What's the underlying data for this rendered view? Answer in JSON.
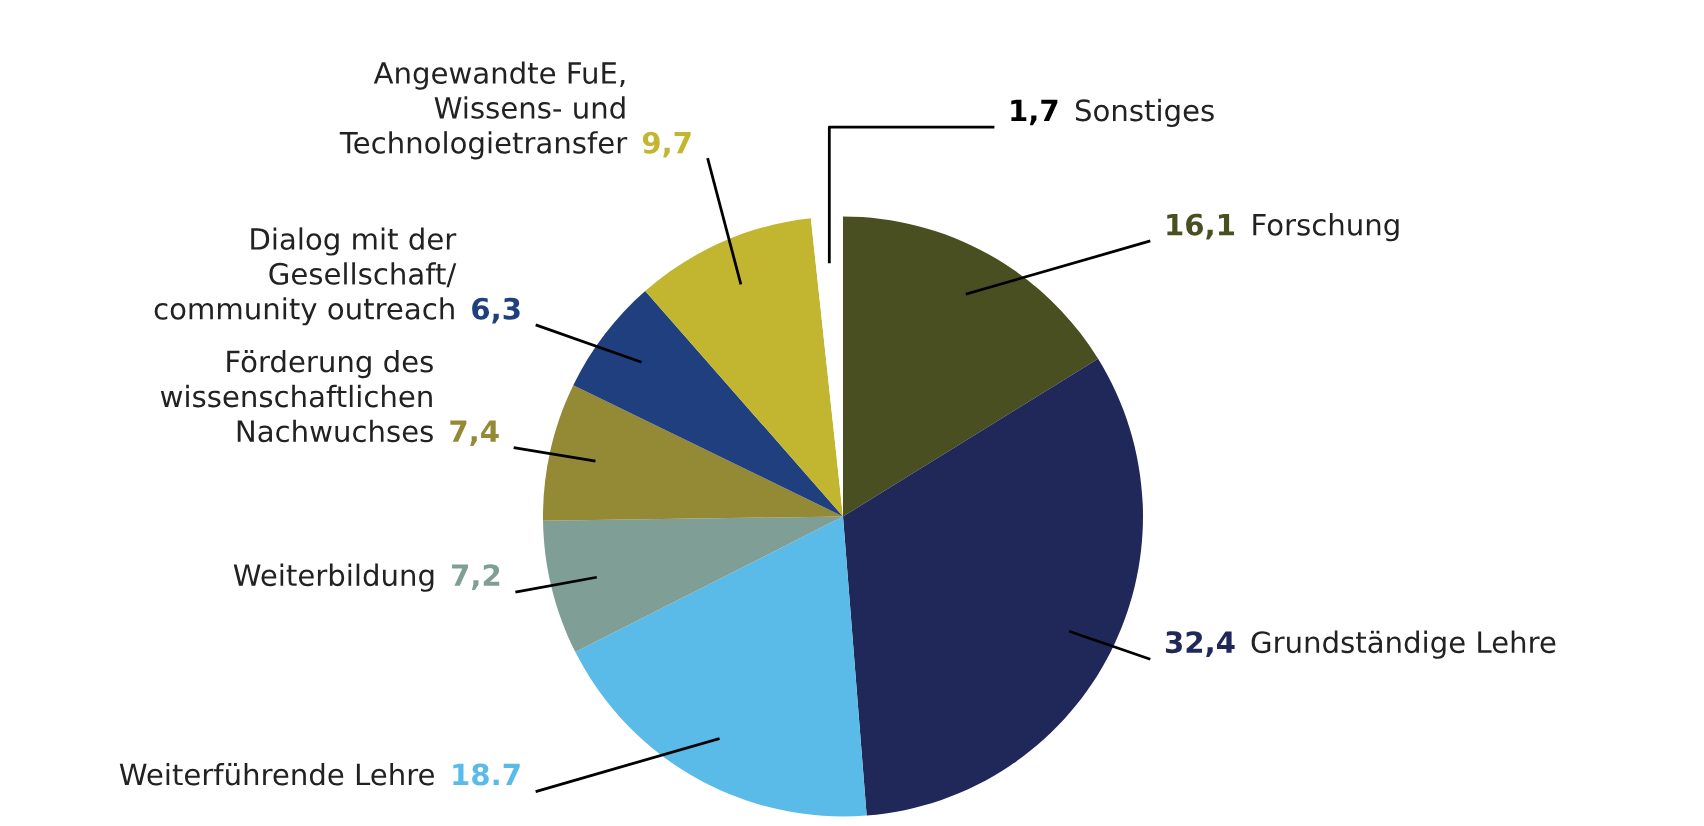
{
  "chart_data": {
    "type": "pie",
    "categories": [
      "Forschung",
      "Grundständige Lehre",
      "Weiterführende Lehre",
      "Weiterbildung",
      "Förderung des\nwissenschaftlichen\nNachwuchses",
      "Dialog mit der\nGesellschaft/\ncommunity outreach",
      "Angewandte FuE,\nWissens- und\nTechnologietransfer",
      "Sonstiges"
    ],
    "values": [
      16.1,
      32.4,
      18.7,
      7.2,
      7.4,
      6.3,
      9.7,
      1.7
    ],
    "value_labels": [
      "16,1",
      "32,4",
      "18.7",
      "7,2",
      "7,4",
      "6,3",
      "9,7",
      "1,7"
    ],
    "colors": [
      "#4a4f22",
      "#1f2858",
      "#5bbbe8",
      "#7f9e96",
      "#948a35",
      "#1f3f7f",
      "#c2b530",
      "#ffffff"
    ],
    "legend": false
  }
}
